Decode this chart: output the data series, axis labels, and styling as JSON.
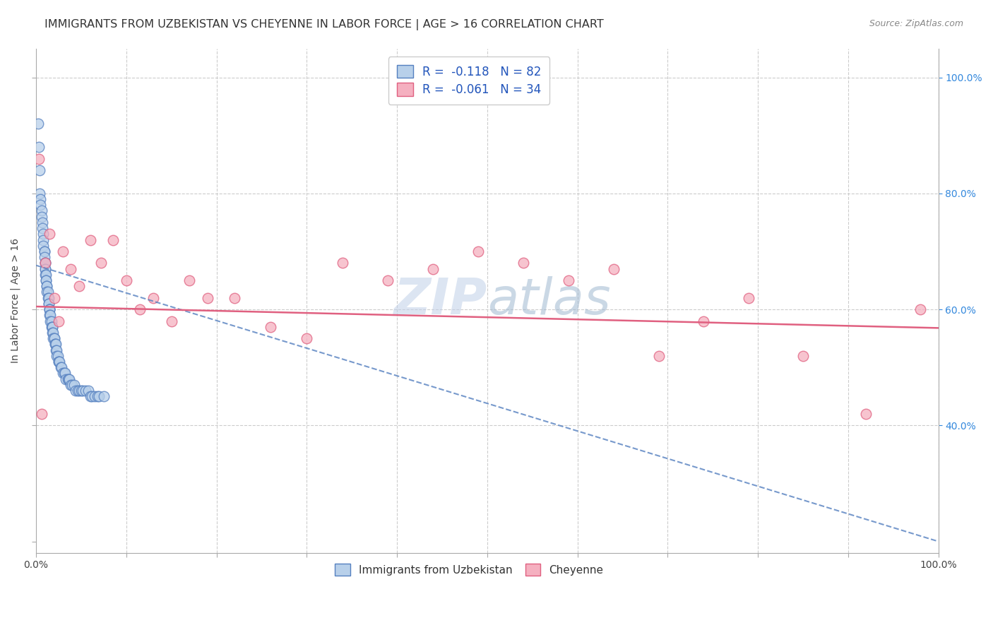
{
  "title": "IMMIGRANTS FROM UZBEKISTAN VS CHEYENNE IN LABOR FORCE | AGE > 16 CORRELATION CHART",
  "source": "Source: ZipAtlas.com",
  "ylabel": "In Labor Force | Age > 16",
  "x_tick_labels": [
    "0.0%",
    "",
    "",
    "",
    "",
    "",
    "",
    "",
    "",
    "",
    "100.0%"
  ],
  "x_tick_vals": [
    0.0,
    0.1,
    0.2,
    0.3,
    0.4,
    0.5,
    0.6,
    0.7,
    0.8,
    0.9,
    1.0
  ],
  "y_tick_labels_right": [
    "100.0%",
    "80.0%",
    "60.0%",
    "40.0%"
  ],
  "y_tick_vals_right": [
    1.0,
    0.8,
    0.6,
    0.4
  ],
  "xlim": [
    0.0,
    1.0
  ],
  "ylim": [
    0.18,
    1.05
  ],
  "legend_R1": "-0.118",
  "legend_N1": "82",
  "legend_R2": "-0.061",
  "legend_N2": "34",
  "color_uzbekistan_fill": "#b8d0ea",
  "color_uzbekistan_edge": "#5580c0",
  "color_cheyenne_fill": "#f5b0c0",
  "color_cheyenne_edge": "#e06080",
  "uzbekistan_scatter_x": [
    0.002,
    0.003,
    0.004,
    0.004,
    0.005,
    0.005,
    0.006,
    0.006,
    0.007,
    0.007,
    0.008,
    0.008,
    0.008,
    0.009,
    0.009,
    0.009,
    0.01,
    0.01,
    0.01,
    0.01,
    0.01,
    0.011,
    0.011,
    0.011,
    0.012,
    0.012,
    0.012,
    0.013,
    0.013,
    0.014,
    0.014,
    0.014,
    0.015,
    0.015,
    0.015,
    0.015,
    0.016,
    0.016,
    0.017,
    0.017,
    0.018,
    0.018,
    0.018,
    0.019,
    0.019,
    0.02,
    0.02,
    0.021,
    0.021,
    0.022,
    0.022,
    0.023,
    0.023,
    0.024,
    0.025,
    0.025,
    0.026,
    0.027,
    0.028,
    0.03,
    0.031,
    0.032,
    0.033,
    0.035,
    0.036,
    0.037,
    0.038,
    0.04,
    0.042,
    0.044,
    0.046,
    0.048,
    0.05,
    0.052,
    0.055,
    0.058,
    0.06,
    0.062,
    0.065,
    0.068,
    0.07,
    0.075
  ],
  "uzbekistan_scatter_y": [
    0.92,
    0.88,
    0.84,
    0.8,
    0.79,
    0.78,
    0.77,
    0.76,
    0.75,
    0.74,
    0.73,
    0.72,
    0.71,
    0.7,
    0.7,
    0.69,
    0.68,
    0.68,
    0.67,
    0.67,
    0.66,
    0.66,
    0.65,
    0.65,
    0.64,
    0.64,
    0.63,
    0.63,
    0.62,
    0.62,
    0.61,
    0.61,
    0.6,
    0.6,
    0.6,
    0.59,
    0.59,
    0.58,
    0.58,
    0.57,
    0.57,
    0.57,
    0.56,
    0.56,
    0.55,
    0.55,
    0.55,
    0.54,
    0.54,
    0.54,
    0.53,
    0.53,
    0.52,
    0.52,
    0.51,
    0.51,
    0.51,
    0.5,
    0.5,
    0.49,
    0.49,
    0.49,
    0.48,
    0.48,
    0.48,
    0.48,
    0.47,
    0.47,
    0.47,
    0.46,
    0.46,
    0.46,
    0.46,
    0.46,
    0.46,
    0.46,
    0.45,
    0.45,
    0.45,
    0.45,
    0.45,
    0.45
  ],
  "cheyenne_scatter_x": [
    0.003,
    0.006,
    0.01,
    0.015,
    0.02,
    0.025,
    0.03,
    0.038,
    0.048,
    0.06,
    0.072,
    0.085,
    0.1,
    0.115,
    0.13,
    0.15,
    0.17,
    0.19,
    0.22,
    0.26,
    0.3,
    0.34,
    0.39,
    0.44,
    0.49,
    0.54,
    0.59,
    0.64,
    0.69,
    0.74,
    0.79,
    0.85,
    0.92,
    0.98
  ],
  "cheyenne_scatter_y": [
    0.86,
    0.42,
    0.68,
    0.73,
    0.62,
    0.58,
    0.7,
    0.67,
    0.64,
    0.72,
    0.68,
    0.72,
    0.65,
    0.6,
    0.62,
    0.58,
    0.65,
    0.62,
    0.62,
    0.57,
    0.55,
    0.68,
    0.65,
    0.67,
    0.7,
    0.68,
    0.65,
    0.67,
    0.52,
    0.58,
    0.62,
    0.52,
    0.42,
    0.6
  ],
  "uzbekistan_trend_x": [
    0.0,
    1.0
  ],
  "uzbekistan_trend_y": [
    0.676,
    0.2
  ],
  "cheyenne_trend_x": [
    0.0,
    1.0
  ],
  "cheyenne_trend_y": [
    0.605,
    0.568
  ],
  "watermark_top": "ZIP",
  "watermark_bottom": "atlas",
  "legend_bottom_label_1": "Immigrants from Uzbekistan",
  "legend_bottom_label_2": "Cheyenne",
  "grid_color": "#cccccc",
  "title_fontsize": 11.5,
  "axis_label_fontsize": 10,
  "tick_fontsize": 10
}
